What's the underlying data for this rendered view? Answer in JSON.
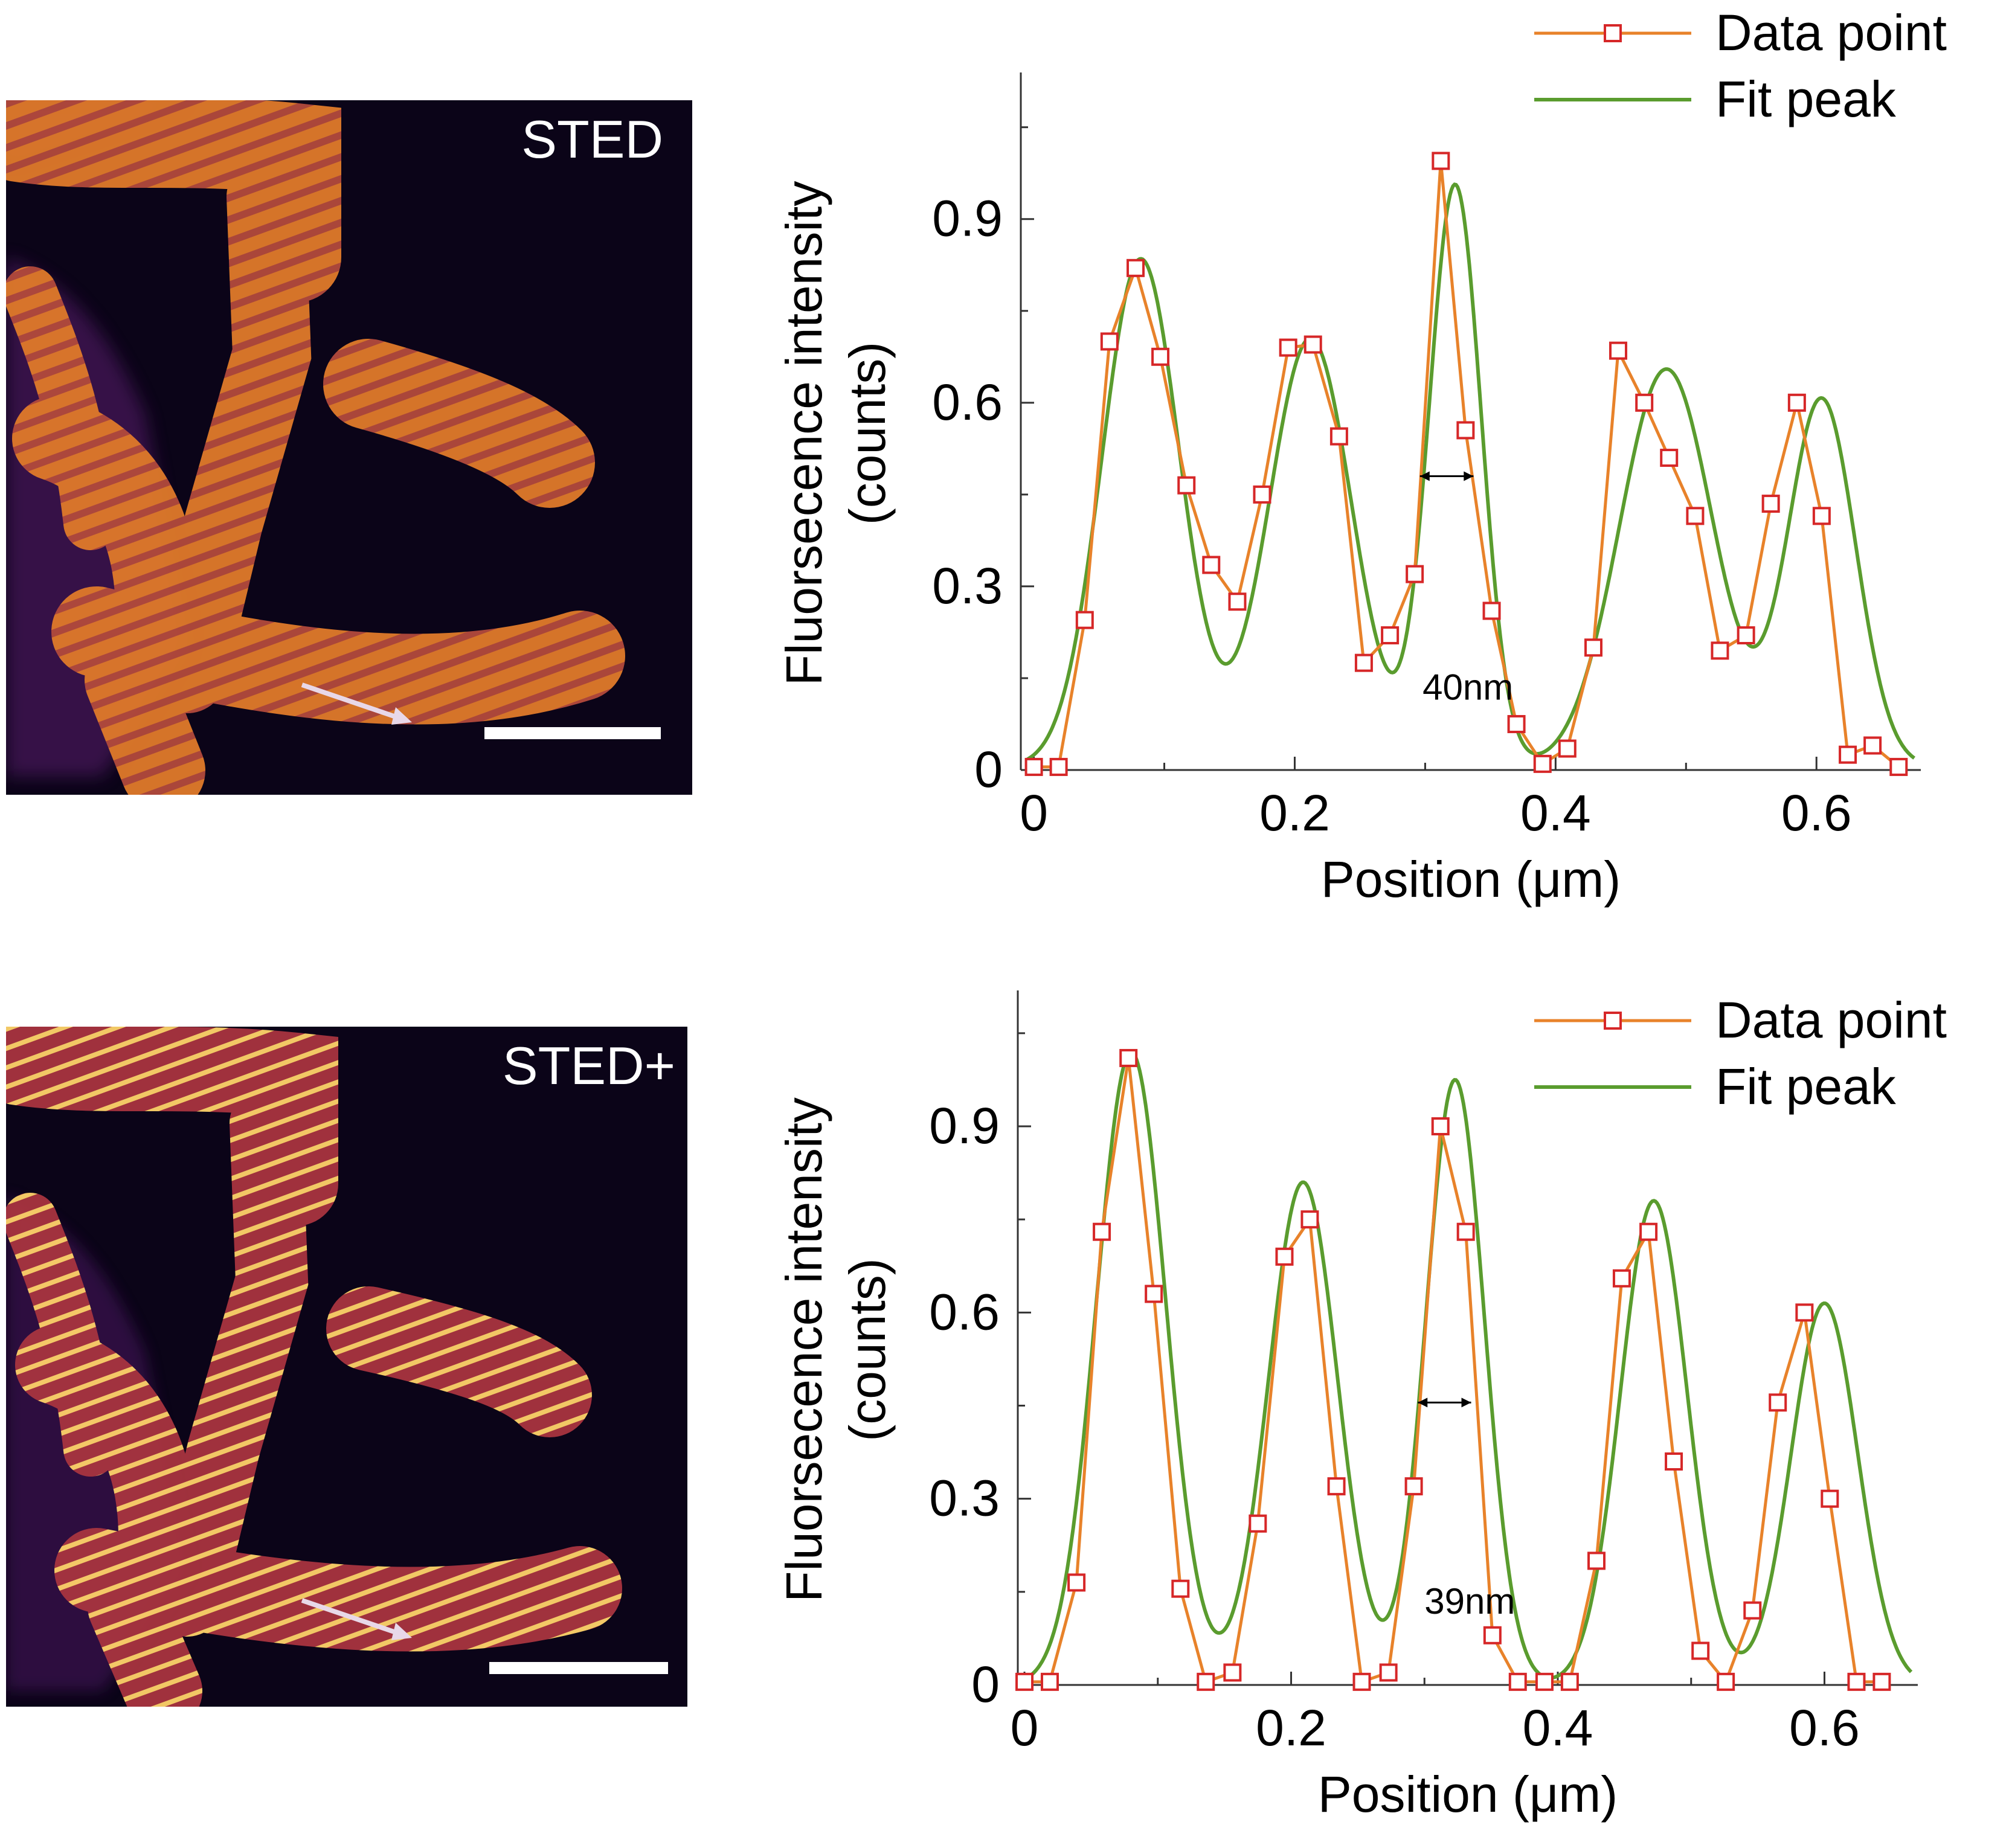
{
  "images": [
    {
      "label": "STED"
    },
    {
      "label": "STED+"
    }
  ],
  "chart_data": [
    {
      "type": "line",
      "xlabel": "Position (μm)",
      "ylabel_line1": "Fluorsecence intensity",
      "ylabel_line2": "(counts)",
      "xlim": [
        -0.01,
        0.68
      ],
      "ylim": [
        0,
        1.1
      ],
      "xticks": [
        0,
        0.2,
        0.4,
        0.6
      ],
      "xtick_labels": [
        "0",
        "0.2",
        "0.4",
        "0.6"
      ],
      "yticks": [
        0,
        0.3,
        0.6,
        0.9
      ],
      "ytick_labels": [
        "0",
        "0.3",
        "0.6",
        "0.9"
      ],
      "legend": "top-right",
      "annotation": {
        "text": "40nm",
        "x": 0.298,
        "y": 0.115,
        "arrow_x": [
          0.296,
          0.337
        ],
        "arrow_y": 0.48
      },
      "series": [
        {
          "name": "Data point",
          "color": "#e8822a",
          "marker_color": "#d62728",
          "x": [
            0.0,
            0.019,
            0.039,
            0.058,
            0.078,
            0.097,
            0.117,
            0.136,
            0.156,
            0.175,
            0.195,
            0.214,
            0.234,
            0.253,
            0.273,
            0.292,
            0.312,
            0.331,
            0.351,
            0.37,
            0.39,
            0.409,
            0.429,
            0.448,
            0.468,
            0.487,
            0.507,
            0.526,
            0.546,
            0.565,
            0.585,
            0.604,
            0.624,
            0.643,
            0.663
          ],
          "values": [
            0.005,
            0.005,
            0.245,
            0.7,
            0.82,
            0.675,
            0.465,
            0.335,
            0.275,
            0.45,
            0.69,
            0.695,
            0.545,
            0.175,
            0.22,
            0.32,
            0.995,
            0.555,
            0.26,
            0.075,
            0.01,
            0.035,
            0.2,
            0.685,
            0.6,
            0.51,
            0.415,
            0.195,
            0.22,
            0.435,
            0.6,
            0.415,
            0.025,
            0.04,
            0.005
          ]
        },
        {
          "name": "Fit peak",
          "color": "#5a9c2e",
          "peaks": [
            [
              0.082,
              0.83,
              0.03
            ],
            [
              0.212,
              0.7,
              0.032
            ],
            [
              0.323,
              0.95,
              0.02
            ],
            [
              0.485,
              0.65,
              0.036
            ],
            [
              0.604,
              0.6,
              0.026
            ]
          ],
          "baseline": 0.005
        }
      ]
    },
    {
      "type": "line",
      "xlabel": "Position (μm)",
      "ylabel_line1": "Fluorsecence intensity",
      "ylabel_line2": "(counts)",
      "xlim": [
        -0.005,
        0.67
      ],
      "ylim": [
        0,
        1.08
      ],
      "xticks": [
        0,
        0.2,
        0.4,
        0.6
      ],
      "xtick_labels": [
        "0",
        "0.2",
        "0.4",
        "0.6"
      ],
      "yticks": [
        0,
        0.3,
        0.6,
        0.9
      ],
      "ytick_labels": [
        "0",
        "0.3",
        "0.6",
        "0.9"
      ],
      "legend": "top-right",
      "annotation": {
        "text": "39nm",
        "x": 0.3,
        "y": 0.115,
        "arrow_x": [
          0.295,
          0.335
        ],
        "arrow_y": 0.455
      },
      "series": [
        {
          "name": "Data point",
          "color": "#e8822a",
          "marker_color": "#d62728",
          "x": [
            0.0,
            0.019,
            0.039,
            0.058,
            0.078,
            0.097,
            0.117,
            0.136,
            0.156,
            0.175,
            0.195,
            0.214,
            0.234,
            0.253,
            0.273,
            0.292,
            0.312,
            0.331,
            0.351,
            0.37,
            0.39,
            0.409,
            0.429,
            0.448,
            0.468,
            0.487,
            0.507,
            0.526,
            0.546,
            0.565,
            0.585,
            0.604,
            0.624,
            0.643
          ],
          "values": [
            0.005,
            0.005,
            0.165,
            0.73,
            1.01,
            0.63,
            0.155,
            0.005,
            0.02,
            0.26,
            0.69,
            0.75,
            0.32,
            0.005,
            0.02,
            0.32,
            0.9,
            0.73,
            0.08,
            0.005,
            0.005,
            0.005,
            0.2,
            0.655,
            0.73,
            0.36,
            0.055,
            0.005,
            0.12,
            0.455,
            0.6,
            0.3,
            0.005,
            0.005
          ]
        },
        {
          "name": "Fit peak",
          "color": "#5a9c2e",
          "peaks": [
            [
              0.08,
              1.02,
              0.026
            ],
            [
              0.209,
              0.81,
              0.026
            ],
            [
              0.323,
              0.975,
              0.022
            ],
            [
              0.472,
              0.78,
              0.025
            ],
            [
              0.6,
              0.615,
              0.025
            ]
          ],
          "baseline": 0.0
        }
      ]
    }
  ]
}
